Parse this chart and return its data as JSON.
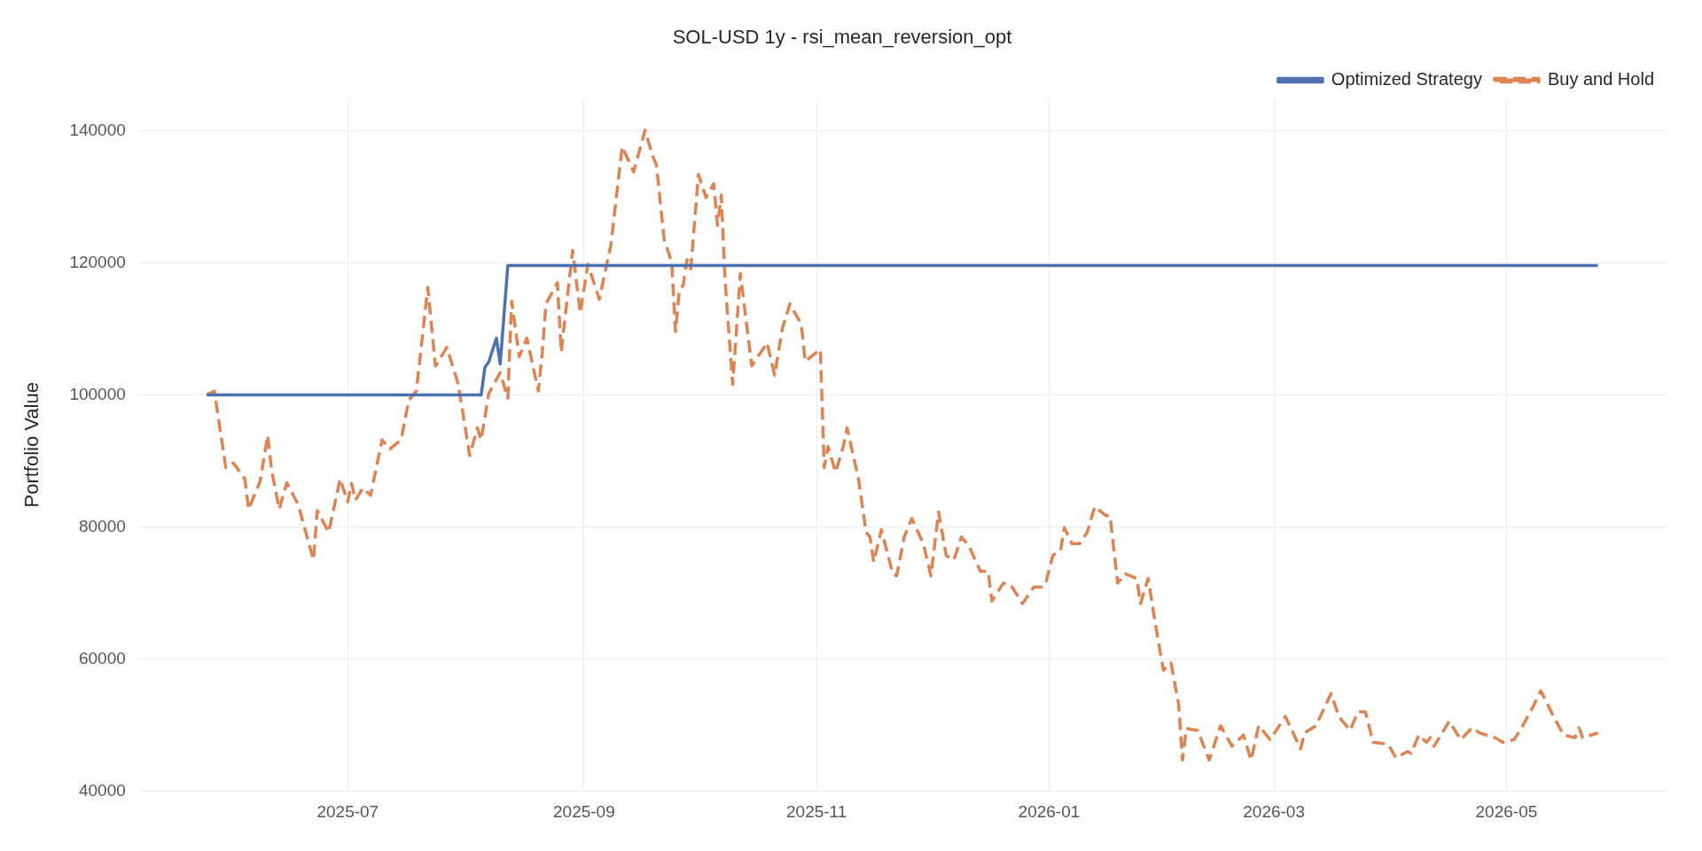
{
  "chart_data": {
    "type": "line",
    "title": "SOL-USD 1y - rsi_mean_reversion_opt",
    "ylabel": "Portfolio Value",
    "xlim": [
      "2025-05-07",
      "2026-06-12"
    ],
    "xticks": [
      {
        "value": "2025-07-01",
        "label": "2025-07"
      },
      {
        "value": "2025-09-01",
        "label": "2025-09"
      },
      {
        "value": "2025-11-01",
        "label": "2025-11"
      },
      {
        "value": "2026-01-01",
        "label": "2026-01"
      },
      {
        "value": "2026-03-01",
        "label": "2026-03"
      },
      {
        "value": "2026-05-01",
        "label": "2026-05"
      }
    ],
    "ylim": [
      39900,
      145000
    ],
    "yticks": [
      40000,
      60000,
      80000,
      100000,
      120000,
      140000
    ],
    "grid": true,
    "legend": "top right",
    "marker": "none",
    "series": [
      {
        "name": "Optimized Strategy",
        "color": "#4c72b0",
        "line_style": "solid",
        "x": [
          "2025-05-25",
          "2025-08-05",
          "2025-08-06",
          "2025-08-07",
          "2025-08-09",
          "2025-08-10",
          "2025-08-12",
          "2026-05-25"
        ],
        "values": [
          100000,
          100000,
          104200,
          105000,
          108600,
          104700,
          119600,
          119600
        ]
      },
      {
        "name": "Buy and Hold",
        "color": "#dd8452",
        "line_style": "dashed",
        "x": [
          "2025-05-25",
          "2025-05-27",
          "2025-05-30",
          "2025-06-01",
          "2025-06-04",
          "2025-06-05",
          "2025-06-08",
          "2025-06-10",
          "2025-06-11",
          "2025-06-13",
          "2025-06-15",
          "2025-06-18",
          "2025-06-22",
          "2025-06-23",
          "2025-06-26",
          "2025-06-29",
          "2025-07-01",
          "2025-07-02",
          "2025-07-03",
          "2025-07-05",
          "2025-07-07",
          "2025-07-10",
          "2025-07-12",
          "2025-07-15",
          "2025-07-17",
          "2025-07-19",
          "2025-07-22",
          "2025-07-24",
          "2025-07-27",
          "2025-07-30",
          "2025-08-02",
          "2025-08-04",
          "2025-08-05",
          "2025-08-07",
          "2025-08-10",
          "2025-08-12",
          "2025-08-13",
          "2025-08-15",
          "2025-08-17",
          "2025-08-20",
          "2025-08-21",
          "2025-08-22",
          "2025-08-25",
          "2025-08-26",
          "2025-08-29",
          "2025-08-31",
          "2025-09-02",
          "2025-09-05",
          "2025-09-08",
          "2025-09-11",
          "2025-09-14",
          "2025-09-17",
          "2025-09-19",
          "2025-09-20",
          "2025-09-22",
          "2025-09-24",
          "2025-09-25",
          "2025-09-26",
          "2025-09-27",
          "2025-09-28",
          "2025-09-29",
          "2025-10-01",
          "2025-10-03",
          "2025-10-05",
          "2025-10-06",
          "2025-10-07",
          "2025-10-08",
          "2025-10-10",
          "2025-10-12",
          "2025-10-15",
          "2025-10-19",
          "2025-10-21",
          "2025-10-23",
          "2025-10-25",
          "2025-10-28",
          "2025-10-29",
          "2025-11-02",
          "2025-11-03",
          "2025-11-04",
          "2025-11-06",
          "2025-11-08",
          "2025-11-09",
          "2025-11-12",
          "2025-11-14",
          "2025-11-15",
          "2025-11-16",
          "2025-11-18",
          "2025-11-21",
          "2025-11-22",
          "2025-11-24",
          "2025-11-26",
          "2025-11-29",
          "2025-12-01",
          "2025-12-03",
          "2025-12-05",
          "2025-12-07",
          "2025-12-09",
          "2025-12-11",
          "2025-12-14",
          "2025-12-16",
          "2025-12-17",
          "2025-12-20",
          "2025-12-22",
          "2025-12-25",
          "2025-12-28",
          "2025-12-30",
          "2025-12-31",
          "2026-01-02",
          "2026-01-04",
          "2026-01-05",
          "2026-01-07",
          "2026-01-09",
          "2026-01-11",
          "2026-01-13",
          "2026-01-16",
          "2026-01-17",
          "2026-01-19",
          "2026-01-21",
          "2026-01-24",
          "2026-01-25",
          "2026-01-27",
          "2026-01-29",
          "2026-01-31",
          "2026-02-02",
          "2026-02-04",
          "2026-02-05",
          "2026-02-06",
          "2026-02-09",
          "2026-02-12",
          "2026-02-15",
          "2026-02-18",
          "2026-02-21",
          "2026-02-23",
          "2026-02-25",
          "2026-02-28",
          "2026-03-04",
          "2026-03-08",
          "2026-03-09",
          "2026-03-12",
          "2026-03-16",
          "2026-03-18",
          "2026-03-21",
          "2026-03-23",
          "2026-03-25",
          "2026-03-27",
          "2026-03-31",
          "2026-04-02",
          "2026-04-05",
          "2026-04-06",
          "2026-04-08",
          "2026-04-10",
          "2026-04-11",
          "2026-04-12",
          "2026-04-16",
          "2026-04-19",
          "2026-04-22",
          "2026-04-24",
          "2026-04-28",
          "2026-04-30",
          "2026-05-03",
          "2026-05-05",
          "2026-05-08",
          "2026-05-10",
          "2026-05-13",
          "2026-05-16",
          "2026-05-19",
          "2026-05-20",
          "2026-05-21",
          "2026-05-25"
        ],
        "values": [
          100000,
          100600,
          89000,
          89700,
          87300,
          82700,
          86900,
          93900,
          88700,
          82700,
          86700,
          83400,
          75000,
          82500,
          79200,
          87300,
          83800,
          86600,
          84100,
          85900,
          84800,
          93200,
          91800,
          93200,
          99200,
          100600,
          116300,
          104400,
          107200,
          101600,
          90800,
          95000,
          93200,
          100200,
          103400,
          99500,
          114200,
          105800,
          108600,
          100600,
          106200,
          113800,
          117000,
          106500,
          121900,
          112400,
          119800,
          114500,
          122600,
          137600,
          133800,
          140100,
          136200,
          134800,
          123600,
          120100,
          109600,
          115900,
          116600,
          120500,
          119100,
          133400,
          129900,
          132000,
          125700,
          130300,
          117300,
          101600,
          118400,
          104400,
          107900,
          103000,
          110000,
          113800,
          110700,
          105100,
          106900,
          89000,
          92200,
          88300,
          92200,
          95000,
          87300,
          79200,
          78500,
          74700,
          79600,
          72900,
          72600,
          78500,
          81300,
          77500,
          72600,
          82300,
          75700,
          75000,
          78500,
          77100,
          73300,
          73300,
          68800,
          71500,
          71200,
          68400,
          70900,
          70900,
          71200,
          75700,
          76400,
          79900,
          77500,
          77500,
          79200,
          83100,
          81700,
          81700,
          71500,
          72900,
          72200,
          68400,
          72200,
          64900,
          58300,
          59400,
          53100,
          44700,
          49500,
          49200,
          44700,
          49900,
          46800,
          48500,
          44700,
          49900,
          47800,
          51300,
          46400,
          48800,
          49900,
          54800,
          51300,
          49200,
          52000,
          52000,
          47400,
          47100,
          45000,
          46000,
          45700,
          48500,
          47400,
          48100,
          46800,
          50600,
          47800,
          49600,
          48800,
          48100,
          47400,
          47800,
          49600,
          52800,
          55200,
          51700,
          48500,
          48100,
          49600,
          48100,
          48800
        ]
      }
    ]
  }
}
